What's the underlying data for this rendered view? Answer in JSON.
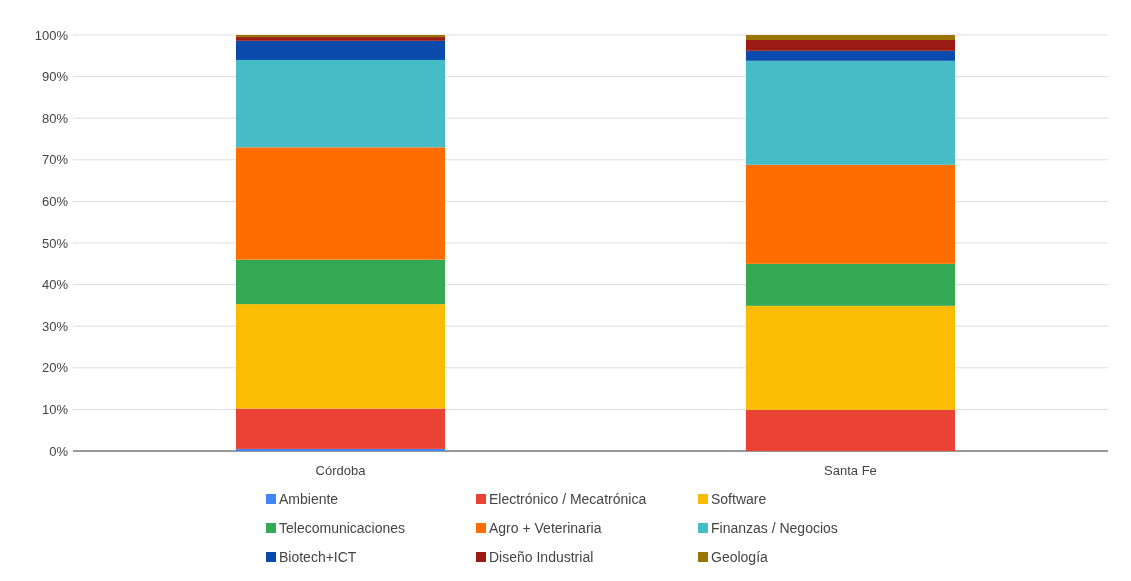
{
  "chart_data": {
    "type": "bar",
    "stacked": true,
    "categories": [
      "Córdoba",
      "Santa Fe"
    ],
    "series": [
      {
        "name": "Ambiente",
        "color": "#4285f4",
        "values": [
          0.5,
          0
        ]
      },
      {
        "name": "Electrónico / Mecatrónica",
        "color": "#ea4335",
        "values": [
          9.7,
          9.9
        ]
      },
      {
        "name": "Software",
        "color": "#fbbc04",
        "values": [
          25.1,
          25
        ]
      },
      {
        "name": "Telecomunicaciones",
        "color": "#34a853",
        "values": [
          10.7,
          10.1
        ]
      },
      {
        "name": "Agro + Veterinaria",
        "color": "#ff6d01",
        "values": [
          27,
          23.8
        ]
      },
      {
        "name": "Finanzas / Negocios",
        "color": "#46bdc6",
        "values": [
          21,
          25
        ]
      },
      {
        "name": "Biotech+ICT",
        "color": "#0b4aad",
        "values": [
          4.6,
          2.4
        ]
      },
      {
        "name": "Diseño Industrial",
        "color": "#9a1b13",
        "values": [
          0.9,
          2.6
        ]
      },
      {
        "name": "Geología",
        "color": "#9a7400",
        "values": [
          0.5,
          1.2
        ]
      }
    ],
    "ylim": [
      0,
      100
    ],
    "yticks": [
      {
        "value": 0,
        "label": "0%"
      },
      {
        "value": 10,
        "label": "10%"
      },
      {
        "value": 20,
        "label": "20%"
      },
      {
        "value": 30,
        "label": "30%"
      },
      {
        "value": 40,
        "label": "40%"
      },
      {
        "value": 50,
        "label": "50%"
      },
      {
        "value": 60,
        "label": "60%"
      },
      {
        "value": 70,
        "label": "70%"
      },
      {
        "value": 80,
        "label": "80%"
      },
      {
        "value": 90,
        "label": "90%"
      },
      {
        "value": 100,
        "label": "100%"
      }
    ],
    "grid": "y",
    "legend": "bottom"
  }
}
